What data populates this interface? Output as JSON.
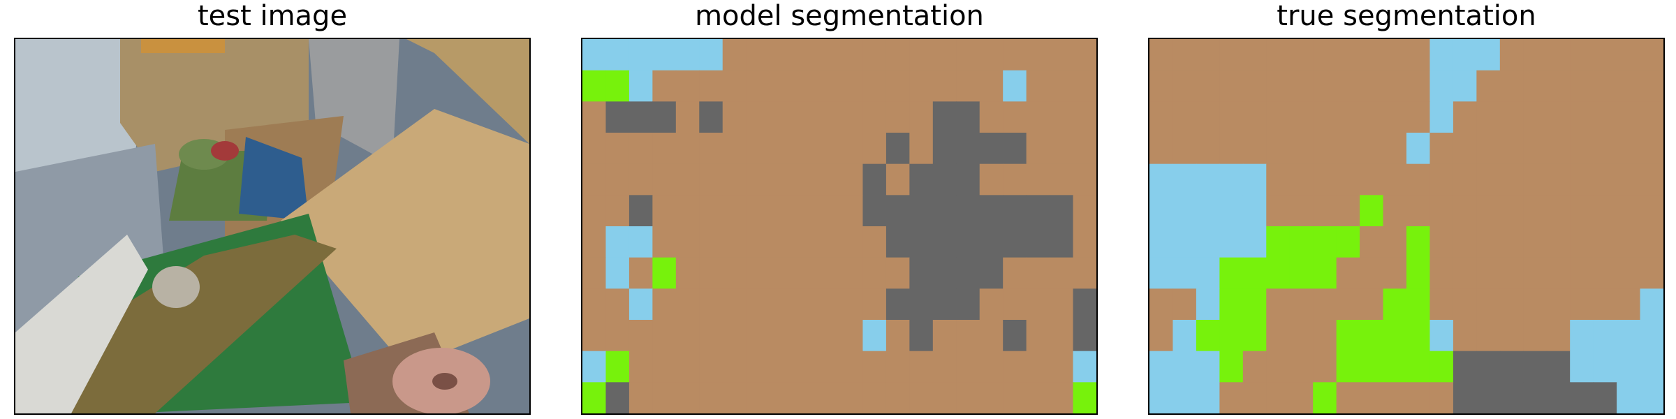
{
  "panels": {
    "test_image": {
      "title": "test image"
    },
    "model_segmentation": {
      "title": "model segmentation",
      "rows": [
        "CCCCCCBBBBBBBBBBBBBBBB",
        "GGCBBBBBBBBBBBBBBBCBBB",
        "BDDDBDBBBBBBBBBDDBBBBB",
        "BBBBBBBBBBBBBDBDDDDBBB",
        "BBBBBBBBBBBBDBDDDBBBBB",
        "BBDBBBBBBBBBDDDDDDDDDB",
        "BCCBBBBBBBBBBDDDDDDDDB",
        "BCBGBBBBBBBBBBDDDDBBBB",
        "BBCBBBBBBBBBBDDDDBBBBD",
        "BBBBBBBBBBBBCBDBBBDBBD",
        "CGBBBBBBBBBBBBBBBBBBBC",
        "GDBBBBBBBBBBBBBBBBBBBG"
      ]
    },
    "true_segmentation": {
      "title": "true segmentation",
      "rows": [
        "BBBBBBBBBBBBCCCBBBBBBB",
        "BBBBBBBBBBBBCCBBBBBBBB",
        "BBBBBBBBBBBBCBBBBBBBBB",
        "BBBBBBBBBBBCBBBBBBBBBB",
        "CCCCCBBBBBBBBBBBBBBBBB",
        "CCCCCBBBBGBBBBBBBBBBBB",
        "CCCCCGGGGBBGBBBBBBBBBB",
        "CCCGGGGGBBBGBBBBBBBBBB",
        "BBCGGBBBBBGGBBBBBBBBBC",
        "BCGGGBBBGGGGCBBBBBCCCC",
        "CCCGBBBBGGGGGDDDDDCCCC",
        "CCCBBBBGBBBBBDDDDDDDCC"
      ]
    }
  },
  "legend_colors": {
    "B": "#b98b62",
    "C": "#87ceeb",
    "G": "#77f20c",
    "D": "#666666"
  }
}
